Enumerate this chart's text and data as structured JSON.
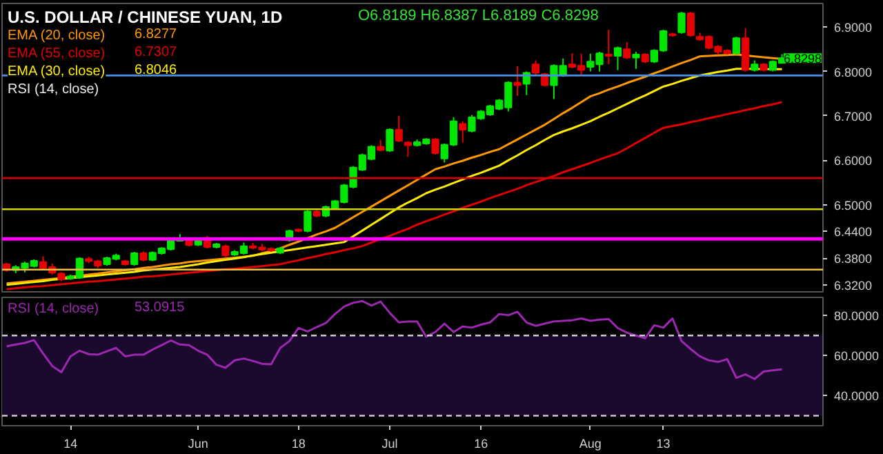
{
  "chart_data": [
    {
      "type": "candlestick",
      "title": "U.S. DOLLAR / CHINESE YUAN, 1D",
      "categories": [
        null,
        null,
        null,
        null,
        null,
        null,
        null,
        null,
        null,
        null,
        null,
        null,
        null,
        null,
        null,
        null,
        null,
        null,
        null,
        null,
        null,
        null,
        null,
        null,
        null,
        null,
        null,
        null,
        null,
        null,
        null,
        null,
        null,
        null,
        null,
        null,
        null,
        null,
        null,
        null,
        null,
        null,
        null,
        null,
        null,
        null,
        null,
        null,
        null,
        null,
        null,
        null,
        null,
        null,
        null,
        null,
        null,
        null,
        null,
        null,
        null,
        null,
        null,
        null,
        null,
        null,
        null,
        null,
        null,
        null,
        null,
        null,
        null,
        null,
        null,
        null,
        null,
        null,
        null,
        null,
        null,
        null,
        null,
        null,
        null,
        null,
        null,
        null,
        null,
        null
      ],
      "ohlc": [
        [
          6.366,
          6.37,
          6.349,
          6.353
        ],
        [
          6.353,
          6.364,
          6.346,
          6.36
        ],
        [
          6.358,
          6.372,
          6.348,
          6.368
        ],
        [
          6.362,
          6.377,
          6.359,
          6.374
        ],
        [
          6.371,
          6.384,
          6.355,
          6.358
        ],
        [
          6.36,
          6.368,
          6.343,
          6.347
        ],
        [
          6.345,
          6.348,
          6.328,
          6.332
        ],
        [
          6.334,
          6.343,
          6.331,
          6.339
        ],
        [
          6.336,
          6.382,
          6.333,
          6.379
        ],
        [
          6.378,
          6.383,
          6.368,
          6.373
        ],
        [
          6.373,
          6.376,
          6.358,
          6.363
        ],
        [
          6.366,
          6.383,
          6.363,
          6.38
        ],
        [
          6.378,
          6.39,
          6.375,
          6.386
        ],
        [
          6.373,
          6.376,
          6.363,
          6.366
        ],
        [
          6.366,
          6.394,
          6.363,
          6.391
        ],
        [
          6.391,
          6.395,
          6.373,
          6.376
        ],
        [
          6.376,
          6.395,
          6.373,
          6.392
        ],
        [
          6.391,
          6.405,
          6.388,
          6.402
        ],
        [
          6.4,
          6.423,
          6.397,
          6.42
        ],
        [
          6.419,
          6.434,
          6.417,
          6.423
        ],
        [
          6.42,
          6.423,
          6.406,
          6.409
        ],
        [
          6.41,
          6.423,
          6.407,
          6.42
        ],
        [
          6.42,
          6.43,
          6.402,
          6.405
        ],
        [
          6.405,
          6.414,
          6.402,
          6.411
        ],
        [
          6.407,
          6.41,
          6.383,
          6.386
        ],
        [
          6.388,
          6.398,
          6.385,
          6.394
        ],
        [
          6.391,
          6.415,
          6.388,
          6.407
        ],
        [
          6.407,
          6.414,
          6.4,
          6.403
        ],
        [
          6.404,
          6.412,
          6.396,
          6.399
        ],
        [
          6.401,
          6.404,
          6.394,
          6.397
        ],
        [
          6.392,
          6.405,
          6.389,
          6.402
        ],
        [
          6.42,
          6.444,
          6.417,
          6.441
        ],
        [
          6.444,
          6.447,
          6.438,
          6.441
        ],
        [
          6.441,
          6.488,
          6.438,
          6.485
        ],
        [
          6.484,
          6.488,
          6.472,
          6.475
        ],
        [
          6.475,
          6.498,
          6.472,
          6.495
        ],
        [
          6.492,
          6.511,
          6.489,
          6.508
        ],
        [
          6.506,
          6.547,
          6.503,
          6.544
        ],
        [
          6.54,
          6.587,
          6.537,
          6.584
        ],
        [
          6.579,
          6.615,
          6.576,
          6.612
        ],
        [
          6.603,
          6.634,
          6.6,
          6.631
        ],
        [
          6.631,
          6.646,
          6.62,
          6.623
        ],
        [
          6.622,
          6.672,
          6.619,
          6.669
        ],
        [
          6.669,
          6.7,
          6.641,
          6.644
        ],
        [
          6.64,
          6.643,
          6.608,
          6.634
        ],
        [
          6.634,
          6.647,
          6.631,
          6.641
        ],
        [
          6.638,
          6.65,
          6.635,
          6.647
        ],
        [
          6.647,
          6.65,
          6.613,
          6.616
        ],
        [
          6.604,
          6.638,
          6.595,
          6.635
        ],
        [
          6.635,
          6.697,
          6.632,
          6.688
        ],
        [
          6.682,
          6.688,
          6.64,
          6.669
        ],
        [
          6.666,
          6.702,
          6.663,
          6.697
        ],
        [
          6.694,
          6.713,
          6.691,
          6.71
        ],
        [
          6.703,
          6.725,
          6.7,
          6.722
        ],
        [
          6.716,
          6.738,
          6.713,
          6.735
        ],
        [
          6.719,
          6.778,
          6.71,
          6.775
        ],
        [
          6.775,
          6.812,
          6.745,
          6.769
        ],
        [
          6.772,
          6.8,
          6.747,
          6.797
        ],
        [
          6.816,
          6.825,
          6.793,
          6.797
        ],
        [
          6.794,
          6.797,
          6.766,
          6.769
        ],
        [
          6.769,
          6.816,
          6.738,
          6.813
        ],
        [
          6.791,
          6.829,
          6.788,
          6.813
        ],
        [
          6.816,
          6.841,
          6.807,
          6.81
        ],
        [
          6.813,
          6.84,
          6.79,
          6.803
        ],
        [
          6.81,
          6.84,
          6.8,
          6.822
        ],
        [
          6.816,
          6.844,
          6.8,
          6.841
        ],
        [
          6.838,
          6.894,
          6.816,
          6.835
        ],
        [
          6.835,
          6.856,
          6.803,
          6.853
        ],
        [
          6.85,
          6.866,
          6.828,
          6.831
        ],
        [
          6.831,
          6.844,
          6.806,
          6.838
        ],
        [
          6.838,
          6.841,
          6.819,
          6.822
        ],
        [
          6.822,
          6.85,
          6.819,
          6.847
        ],
        [
          6.847,
          6.894,
          6.844,
          6.891
        ],
        [
          6.884,
          6.887,
          6.878,
          6.881
        ],
        [
          6.888,
          6.934,
          6.885,
          6.931
        ],
        [
          6.931,
          6.934,
          6.878,
          6.881
        ],
        [
          6.878,
          6.887,
          6.869,
          6.872
        ],
        [
          6.878,
          6.881,
          6.85,
          6.853
        ],
        [
          6.856,
          6.859,
          6.838,
          6.844
        ],
        [
          6.847,
          6.85,
          6.838,
          6.841
        ],
        [
          6.841,
          6.878,
          6.838,
          6.875
        ],
        [
          6.875,
          6.897,
          6.8,
          6.803
        ],
        [
          6.803,
          6.825,
          6.8,
          6.816
        ],
        [
          6.816,
          6.819,
          6.8,
          6.803
        ],
        [
          6.803,
          6.825,
          6.8,
          6.822
        ],
        [
          6.8189,
          6.8387,
          6.8189,
          6.8298
        ],
        null,
        null,
        null,
        null
      ],
      "series": [
        {
          "name": "EMA (20, close)",
          "type": "line",
          "color": "#ff9800",
          "values": [
            6.323,
            6.325,
            6.327,
            6.329,
            6.331,
            6.333,
            6.335,
            6.338,
            6.34,
            6.343,
            6.345,
            6.348,
            6.35,
            6.353,
            6.355,
            6.358,
            6.36,
            6.363,
            6.366,
            6.368,
            6.371,
            6.373,
            6.375,
            6.377,
            6.379,
            6.381,
            6.383,
            6.385,
            6.391,
            6.396,
            6.402,
            6.41,
            6.417,
            6.425,
            6.433,
            6.44,
            6.448,
            6.46,
            6.472,
            6.484,
            6.496,
            6.508,
            6.52,
            6.532,
            6.544,
            6.556,
            6.568,
            6.58,
            6.586,
            6.593,
            6.599,
            6.606,
            6.612,
            6.619,
            6.625,
            6.636,
            6.647,
            6.658,
            6.669,
            6.68,
            6.693,
            6.706,
            6.718,
            6.731,
            6.744,
            6.751,
            6.759,
            6.766,
            6.774,
            6.781,
            6.788,
            6.796,
            6.803,
            6.811,
            6.819,
            6.826,
            6.834,
            6.835,
            6.836,
            6.837,
            6.838,
            6.836,
            6.834,
            6.832,
            6.83,
            6.828,
            null,
            null,
            null,
            null
          ]
        },
        {
          "name": "EMA (55, close)",
          "type": "line",
          "color": "#e00000",
          "values": [
            6.31,
            6.312,
            6.314,
            6.316,
            6.317,
            6.319,
            6.321,
            6.323,
            6.325,
            6.327,
            6.328,
            6.33,
            6.332,
            6.334,
            6.336,
            6.338,
            6.339,
            6.341,
            6.343,
            6.345,
            6.347,
            6.349,
            6.351,
            6.353,
            6.355,
            6.356,
            6.358,
            6.36,
            6.362,
            6.364,
            6.366,
            6.371,
            6.375,
            6.38,
            6.384,
            6.389,
            6.393,
            6.398,
            6.402,
            6.407,
            6.415,
            6.423,
            6.43,
            6.438,
            6.446,
            6.455,
            6.463,
            6.47,
            6.478,
            6.485,
            6.493,
            6.5,
            6.507,
            6.515,
            6.522,
            6.529,
            6.536,
            6.544,
            6.551,
            6.558,
            6.565,
            6.573,
            6.58,
            6.587,
            6.594,
            6.602,
            6.609,
            6.616,
            6.627,
            6.639,
            6.65,
            6.662,
            6.673,
            6.677,
            6.681,
            6.686,
            6.69,
            6.695,
            6.699,
            6.704,
            6.708,
            6.713,
            6.717,
            6.722,
            6.726,
            6.731,
            null,
            null,
            null,
            null
          ]
        },
        {
          "name": "EMA (30, close)",
          "type": "line",
          "color": "#ffeb00",
          "values": [
            6.32,
            6.322,
            6.324,
            6.326,
            6.328,
            6.331,
            6.333,
            6.335,
            6.337,
            6.339,
            6.341,
            6.343,
            6.345,
            6.347,
            6.349,
            6.352,
            6.354,
            6.356,
            6.358,
            6.36,
            6.363,
            6.366,
            6.37,
            6.373,
            6.376,
            6.379,
            6.382,
            6.386,
            6.389,
            6.392,
            6.395,
            6.398,
            6.401,
            6.404,
            6.407,
            6.41,
            6.413,
            6.416,
            6.429,
            6.442,
            6.455,
            6.468,
            6.481,
            6.494,
            6.505,
            6.515,
            6.526,
            6.534,
            6.541,
            6.549,
            6.557,
            6.565,
            6.572,
            6.58,
            6.588,
            6.6,
            6.611,
            6.623,
            6.634,
            6.646,
            6.657,
            6.665,
            6.672,
            6.68,
            6.688,
            6.698,
            6.707,
            6.717,
            6.727,
            6.737,
            6.746,
            6.756,
            6.766,
            6.772,
            6.779,
            6.785,
            6.791,
            6.795,
            6.799,
            6.802,
            6.806,
            6.806,
            6.806,
            6.805,
            6.805,
            6.805,
            null,
            null,
            null,
            null
          ]
        }
      ],
      "annotations": [
        "O6.8189 H6.8387 L6.8189 C6.8298",
        "6.8277",
        "6.7307",
        "6.8046",
        "RSI (14, close)",
        "6.8298"
      ],
      "ylim": [
        6.304,
        6.953
      ],
      "yticks": [
        {
          "value": 6.9,
          "label": "6.9000"
        },
        {
          "value": 6.8,
          "label": "6.8000"
        },
        {
          "value": 6.7,
          "label": "6.7000"
        },
        {
          "value": 6.6,
          "label": "6.6000"
        },
        {
          "value": 6.5,
          "label": "6.5000"
        },
        {
          "value": 6.44,
          "label": "6.4400"
        },
        {
          "value": 6.38,
          "label": "6.3800"
        },
        {
          "value": 6.32,
          "label": "6.3200"
        }
      ],
      "ref_lines": [
        {
          "axis": "y",
          "value": 6.791,
          "color": "#4a90e2"
        },
        {
          "axis": "y",
          "value": 6.56,
          "color": "#d00000"
        },
        {
          "axis": "y",
          "value": 6.49,
          "color": "#d4d400"
        },
        {
          "axis": "y",
          "value": 6.423,
          "color": "#ff00ff"
        },
        {
          "axis": "y",
          "value": 6.354,
          "color": "#f0c040"
        }
      ],
      "tick_labels": "y",
      "legend": "top left"
    },
    {
      "type": "line",
      "categories": [
        null,
        null,
        null,
        null,
        null,
        null,
        null,
        "14",
        null,
        null,
        null,
        null,
        null,
        null,
        null,
        null,
        null,
        null,
        null,
        null,
        null,
        "Jun",
        null,
        null,
        null,
        null,
        null,
        null,
        null,
        null,
        null,
        null,
        "18",
        null,
        null,
        null,
        null,
        null,
        null,
        null,
        null,
        null,
        "Jul",
        null,
        null,
        null,
        null,
        null,
        null,
        null,
        null,
        null,
        "16",
        null,
        null,
        null,
        null,
        null,
        null,
        null,
        null,
        null,
        null,
        null,
        "Aug",
        null,
        null,
        null,
        null,
        null,
        null,
        null,
        "13",
        null,
        null,
        null,
        null,
        null,
        null,
        null,
        null,
        null,
        null,
        null,
        null,
        null,
        null,
        null,
        null,
        null
      ],
      "series": [
        {
          "name": "RSI (14, close)",
          "color": "#9c27b0",
          "values": [
            64.6,
            65.5,
            66.3,
            67.7,
            61.0,
            54.8,
            51.7,
            59.6,
            62.4,
            60.7,
            60.4,
            62.1,
            63.8,
            59.6,
            60.4,
            60.4,
            63.0,
            65.2,
            67.5,
            65.5,
            65.2,
            62.4,
            60.4,
            55.4,
            53.9,
            57.6,
            58.5,
            57.3,
            55.9,
            55.6,
            63.8,
            67.2,
            73.7,
            72.0,
            74.2,
            76.2,
            80.7,
            84.4,
            86.3,
            87.2,
            84.9,
            86.9,
            81.3,
            76.5,
            77.0,
            77.0,
            69.4,
            71.7,
            75.9,
            71.7,
            74.5,
            73.9,
            75.4,
            76.5,
            80.7,
            80.1,
            81.8,
            76.5,
            74.8,
            75.9,
            77.0,
            77.3,
            77.6,
            78.5,
            77.3,
            77.9,
            78.2,
            73.7,
            71.4,
            70.0,
            68.6,
            75.1,
            73.9,
            78.5,
            67.2,
            63.2,
            59.6,
            57.6,
            56.8,
            58.2,
            48.9,
            50.6,
            48.3,
            52.0,
            52.6,
            53.1,
            null,
            null,
            null,
            null
          ]
        }
      ],
      "annotations": [
        "53.0915"
      ],
      "ylim": [
        25,
        89
      ],
      "yticks": [
        {
          "value": 80,
          "label": "80.0000"
        },
        {
          "value": 60,
          "label": "60.0000"
        },
        {
          "value": 40,
          "label": "40.0000"
        }
      ],
      "ref_lines": [
        {
          "axis": "y",
          "value": 70,
          "color": "#cccccc",
          "line_style": "dashed"
        },
        {
          "axis": "y",
          "value": 30,
          "color": "#cccccc",
          "line_style": "dashed"
        }
      ],
      "bands": [
        {
          "axis": "y",
          "from": 30,
          "to": 70,
          "color": "#1c0a2e"
        }
      ],
      "legend": "top left"
    }
  ]
}
